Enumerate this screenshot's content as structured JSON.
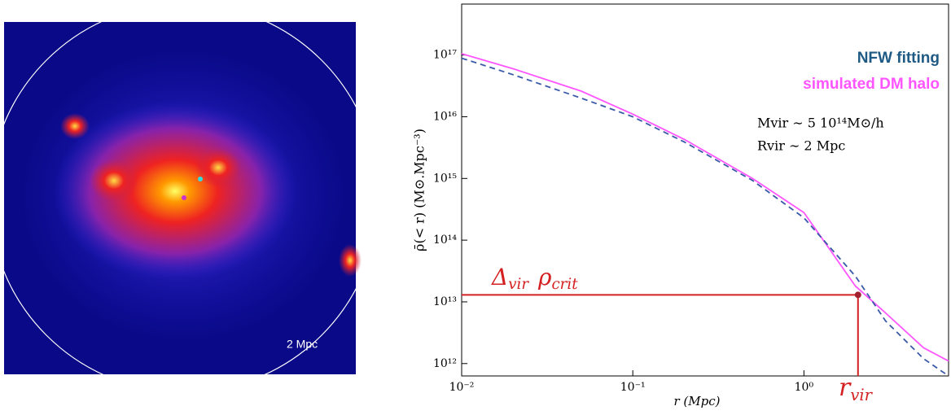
{
  "image": {
    "scale_label": "2 Mpc"
  },
  "chart_data": {
    "type": "line",
    "x_label": "r (Mpc)",
    "y_label": "ρ̄(< r) (M⊙.Mpc⁻³)",
    "log_x": true,
    "log_y": true,
    "xlim": [
      0.01,
      7
    ],
    "ylim": [
      630000000000.0,
      6.7e+17
    ],
    "xticks": [
      {
        "value": 0.01,
        "label": "10⁻²"
      },
      {
        "value": 0.1,
        "label": "10⁻¹"
      },
      {
        "value": 1,
        "label": "10⁰"
      }
    ],
    "yticks": [
      {
        "value": 1000000000000.0,
        "label": "10¹²"
      },
      {
        "value": 10000000000000.0,
        "label": "10¹³"
      },
      {
        "value": 100000000000000.0,
        "label": "10¹⁴"
      },
      {
        "value": 1000000000000000.0,
        "label": "10¹⁵"
      },
      {
        "value": 1e+16,
        "label": "10¹⁶"
      },
      {
        "value": 1e+17,
        "label": "10¹⁷"
      }
    ],
    "x": [
      0.01,
      0.02,
      0.05,
      0.1,
      0.2,
      0.5,
      1,
      2,
      3,
      5,
      7
    ],
    "series": [
      {
        "name": "simulated DM halo",
        "color": "#ff55ff",
        "dashed": false,
        "values": [
          1.05e+17,
          6e+16,
          2.6e+16,
          1.1e+16,
          4300000000000000.0,
          1000000000000000.0,
          280000000000000.0,
          18000000000000.0,
          6600000000000.0,
          1800000000000.0,
          1100000000000.0
        ]
      },
      {
        "name": "NFW fitting",
        "color": "#3a5aa8",
        "label_color": "#1f5a85",
        "dashed": true,
        "values": [
          8.9e+16,
          4.8e+16,
          2e+16,
          1e+16,
          3900000000000000.0,
          930000000000000.0,
          230000000000000.0,
          26000000000000.0,
          4900000000000.0,
          1200000000000.0,
          630000000000.0
        ]
      }
    ],
    "annotations": {
      "mvir": "Mvir ∼ 5 10¹⁴M⊙/h",
      "rvir_text": "Rvir ∼ 2 Mpc",
      "delta": {
        "symbol": "Δ",
        "sub": "vir",
        "symbol2": "ρ",
        "sub2": "crit"
      },
      "r": {
        "symbol": "r",
        "sub": "vir"
      }
    },
    "rvir_point": {
      "x": 2.07,
      "y": 13000000000000.0,
      "color": "#d42020"
    }
  }
}
